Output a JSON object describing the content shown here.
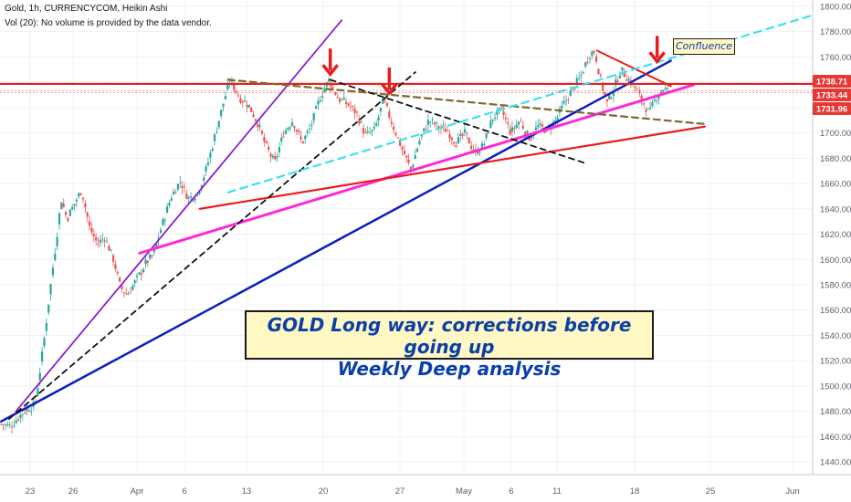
{
  "header": {
    "symbol_line": "Gold, 1h, CURRENCYCOM, Heikin Ashi",
    "volume_line": "Vol (20): No volume is provided by the data vendor."
  },
  "annotations": {
    "banner_line1": "GOLD Long way: corrections before going up",
    "banner_line2": "Weekly Deep analysis",
    "confluence": "Confluence"
  },
  "price_badges": [
    {
      "label": "1738.71",
      "price": 1738.71,
      "color": "#e53935"
    },
    {
      "label": "1733.44",
      "price": 1733.44,
      "color": "#e53935"
    },
    {
      "label": "1731.96",
      "price": 1731.96,
      "color": "#e53935"
    }
  ],
  "chart_data": {
    "type": "candlestick",
    "x_ticks": [
      "23",
      "26",
      "Apr",
      "6",
      "13",
      "20",
      "27",
      "May",
      "6",
      "11",
      "18",
      "25",
      "Jun"
    ],
    "y_ticks": [
      1440,
      1460,
      1480,
      1500,
      1520,
      1540,
      1560,
      1580,
      1600,
      1620,
      1640,
      1660,
      1680,
      1700,
      1720,
      1740,
      1760,
      1780,
      1800
    ],
    "ylim": [
      1430,
      1805
    ],
    "xlim_days": [
      -3.6,
      68
    ],
    "price_path": [
      [
        -3.5,
        1470
      ],
      [
        -2.7,
        1468
      ],
      [
        -1.5,
        1480
      ],
      [
        -0.5,
        1485
      ],
      [
        0.2,
        1530
      ],
      [
        0.8,
        1575
      ],
      [
        1.4,
        1618
      ],
      [
        1.8,
        1648
      ],
      [
        2.3,
        1632
      ],
      [
        2.9,
        1643
      ],
      [
        3.6,
        1655
      ],
      [
        4.3,
        1625
      ],
      [
        5.0,
        1612
      ],
      [
        5.6,
        1618
      ],
      [
        6.4,
        1600
      ],
      [
        7.0,
        1578
      ],
      [
        7.6,
        1572
      ],
      [
        8.5,
        1585
      ],
      [
        9.3,
        1598
      ],
      [
        9.9,
        1603
      ],
      [
        10.6,
        1625
      ],
      [
        11.5,
        1650
      ],
      [
        12.3,
        1662
      ],
      [
        13.0,
        1648
      ],
      [
        13.8,
        1652
      ],
      [
        14.6,
        1672
      ],
      [
        15.4,
        1700
      ],
      [
        16.2,
        1728
      ],
      [
        16.7,
        1742
      ],
      [
        17.5,
        1728
      ],
      [
        18.3,
        1722
      ],
      [
        19.1,
        1708
      ],
      [
        19.8,
        1690
      ],
      [
        20.6,
        1676
      ],
      [
        21.4,
        1700
      ],
      [
        22.2,
        1710
      ],
      [
        23.0,
        1692
      ],
      [
        23.8,
        1705
      ],
      [
        24.6,
        1728
      ],
      [
        25.4,
        1742
      ],
      [
        26.2,
        1727
      ],
      [
        27.0,
        1723
      ],
      [
        27.8,
        1716
      ],
      [
        28.6,
        1698
      ],
      [
        29.4,
        1702
      ],
      [
        30.2,
        1726
      ],
      [
        31.0,
        1706
      ],
      [
        31.8,
        1688
      ],
      [
        32.6,
        1671
      ],
      [
        33.4,
        1695
      ],
      [
        34.2,
        1710
      ],
      [
        35.0,
        1705
      ],
      [
        35.8,
        1702
      ],
      [
        36.6,
        1692
      ],
      [
        37.4,
        1700
      ],
      [
        38.2,
        1684
      ],
      [
        39.0,
        1690
      ],
      [
        39.8,
        1712
      ],
      [
        40.6,
        1718
      ],
      [
        41.4,
        1700
      ],
      [
        42.2,
        1710
      ],
      [
        43.0,
        1696
      ],
      [
        43.8,
        1705
      ],
      [
        44.6,
        1702
      ],
      [
        45.4,
        1710
      ],
      [
        46.2,
        1725
      ],
      [
        46.9,
        1735
      ],
      [
        47.6,
        1745
      ],
      [
        48.3,
        1762
      ],
      [
        48.8,
        1765
      ],
      [
        49.3,
        1742
      ],
      [
        49.9,
        1723
      ],
      [
        50.5,
        1735
      ],
      [
        51.1,
        1750
      ],
      [
        51.8,
        1742
      ],
      [
        52.4,
        1735
      ],
      [
        53.0,
        1725
      ],
      [
        53.6,
        1715
      ],
      [
        54.2,
        1728
      ],
      [
        54.8,
        1735
      ],
      [
        55.3,
        1733
      ]
    ],
    "trendlines": [
      {
        "name": "support-1",
        "color": "#0b1fbf",
        "width": 2.5,
        "dash": "",
        "points": [
          [
            -3.5,
            1472
          ],
          [
            55.5,
            1757
          ]
        ]
      },
      {
        "name": "support-2",
        "color": "#8b1fd1",
        "width": 1.8,
        "dash": "",
        "points": [
          [
            -2.2,
            1480
          ],
          [
            26.5,
            1789
          ]
        ]
      },
      {
        "name": "support-3",
        "color": "#ff28d8",
        "width": 3,
        "dash": "",
        "points": [
          [
            8.7,
            1605
          ],
          [
            57.5,
            1738
          ]
        ]
      },
      {
        "name": "support-4",
        "color": "#e81c1c",
        "width": 2.2,
        "dash": "",
        "points": [
          [
            14.0,
            1640
          ],
          [
            58.5,
            1705
          ]
        ]
      },
      {
        "name": "resistance-1",
        "color": "#e81c1c",
        "width": 2,
        "dash": "",
        "points": [
          [
            49.0,
            1765
          ],
          [
            55.5,
            1737
          ]
        ]
      },
      {
        "name": "resistance-level",
        "color": "#e81c1c",
        "width": 2.2,
        "dash": "",
        "points": [
          [
            -3.6,
            1738.71
          ],
          [
            68,
            1738.71
          ]
        ]
      },
      {
        "name": "dash-brown",
        "color": "#7a6a2c",
        "width": 2.2,
        "dash": "7,5",
        "points": [
          [
            16.5,
            1742
          ],
          [
            58.5,
            1707
          ]
        ]
      },
      {
        "name": "dash-black-1",
        "color": "#111111",
        "width": 1.8,
        "dash": "6,5",
        "points": [
          [
            -2.8,
            1474
          ],
          [
            33.0,
            1748
          ]
        ]
      },
      {
        "name": "dash-black-2",
        "color": "#111111",
        "width": 1.8,
        "dash": "6,5",
        "points": [
          [
            25.5,
            1742
          ],
          [
            48.0,
            1676
          ]
        ]
      },
      {
        "name": "dash-cyan",
        "color": "#3ee0f0",
        "width": 2.2,
        "dash": "8,6",
        "points": [
          [
            16.5,
            1653
          ],
          [
            68.0,
            1793
          ]
        ]
      }
    ],
    "arrows": [
      {
        "name": "arrow-1",
        "day": 25.5,
        "tip": 1745
      },
      {
        "name": "arrow-2",
        "day": 30.7,
        "tip": 1730
      },
      {
        "name": "arrow-3",
        "day": 54.3,
        "tip": 1755
      }
    ]
  }
}
